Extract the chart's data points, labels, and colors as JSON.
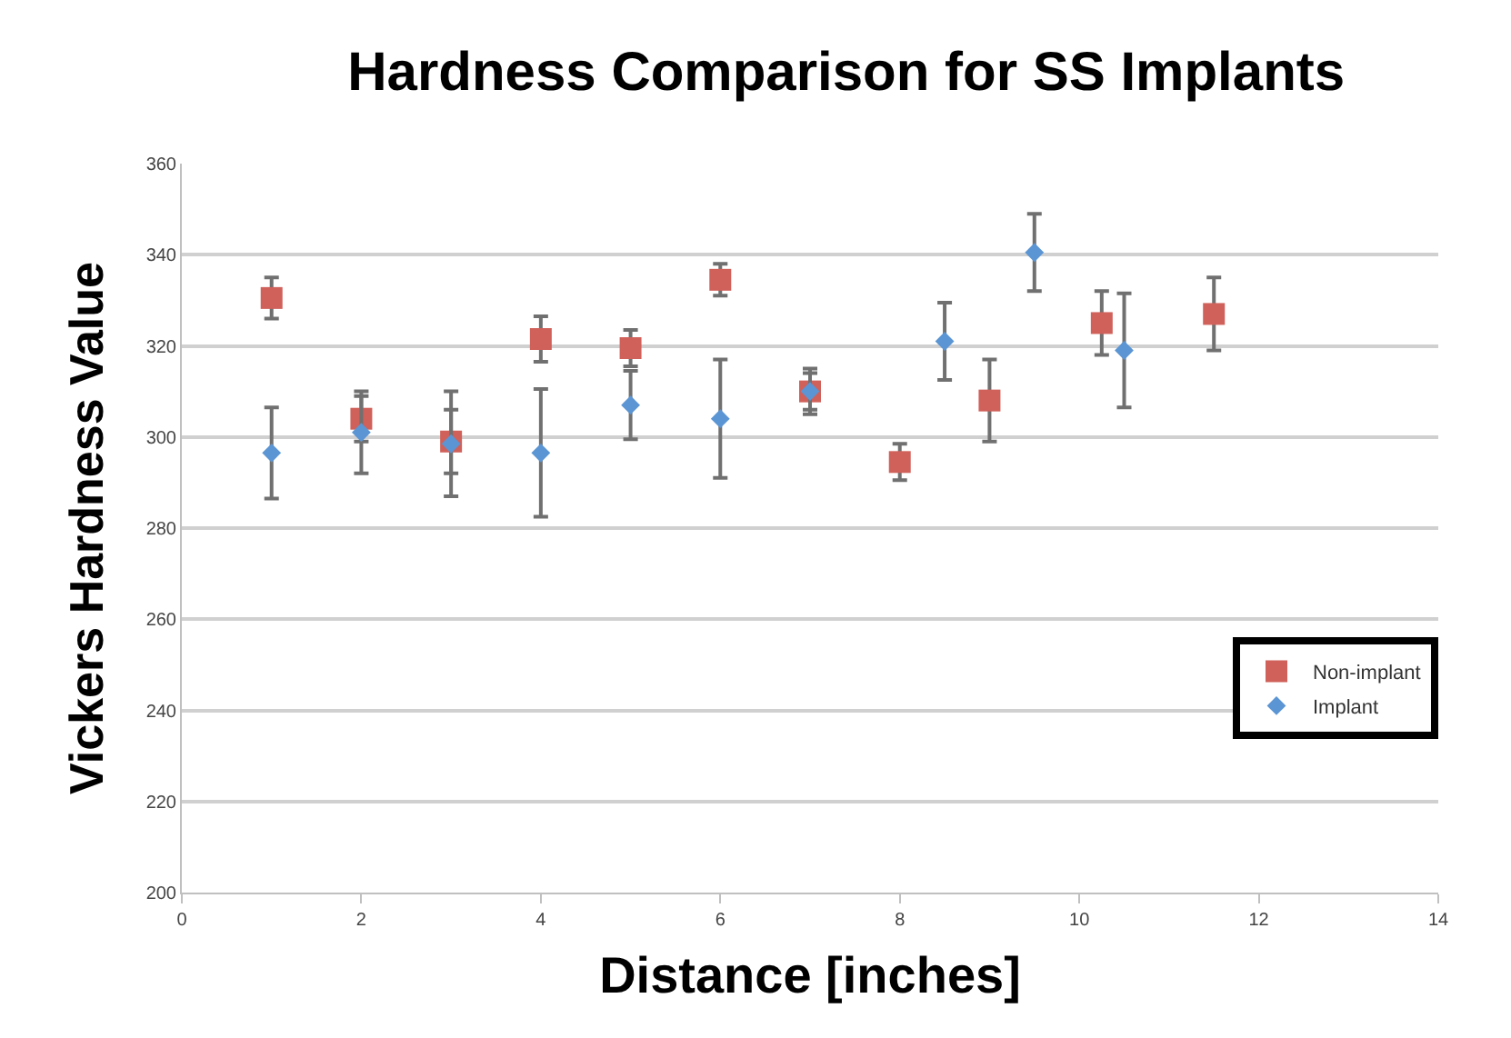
{
  "chart_data": {
    "type": "scatter",
    "title": "Hardness Comparison for SS Implants",
    "xlabel": "Distance [inches]",
    "ylabel": "Vickers Hardness Value",
    "xlim": [
      0,
      14
    ],
    "xticks": [
      0,
      2,
      4,
      6,
      8,
      10,
      12,
      14
    ],
    "ylim": [
      200,
      360
    ],
    "yticks": [
      200,
      220,
      240,
      260,
      280,
      300,
      320,
      340,
      360
    ],
    "grid": "y",
    "legend": "right",
    "series": [
      {
        "name": "Non-implant",
        "color": "#d0605a",
        "marker": "square",
        "x": [
          1,
          2,
          3,
          4,
          5,
          6,
          7,
          8,
          9,
          10.25,
          11.5
        ],
        "values": [
          330.5,
          304,
          299,
          321.5,
          319.5,
          334.5,
          310,
          294.5,
          308,
          325,
          327
        ],
        "errors": [
          4.5,
          5,
          7,
          5,
          4,
          3.5,
          5,
          4,
          9,
          7,
          8
        ]
      },
      {
        "name": "Implant",
        "color": "#5b95d3",
        "marker": "diamond",
        "x": [
          1,
          2,
          3,
          4,
          5,
          6,
          7,
          8.5,
          9.5,
          10.5
        ],
        "values": [
          296.5,
          301,
          298.5,
          296.5,
          307,
          304,
          310,
          321,
          340.5,
          319
        ],
        "errors": [
          10,
          9,
          11.5,
          14,
          7.5,
          13,
          4,
          8.5,
          8.5,
          12.5
        ]
      }
    ]
  }
}
